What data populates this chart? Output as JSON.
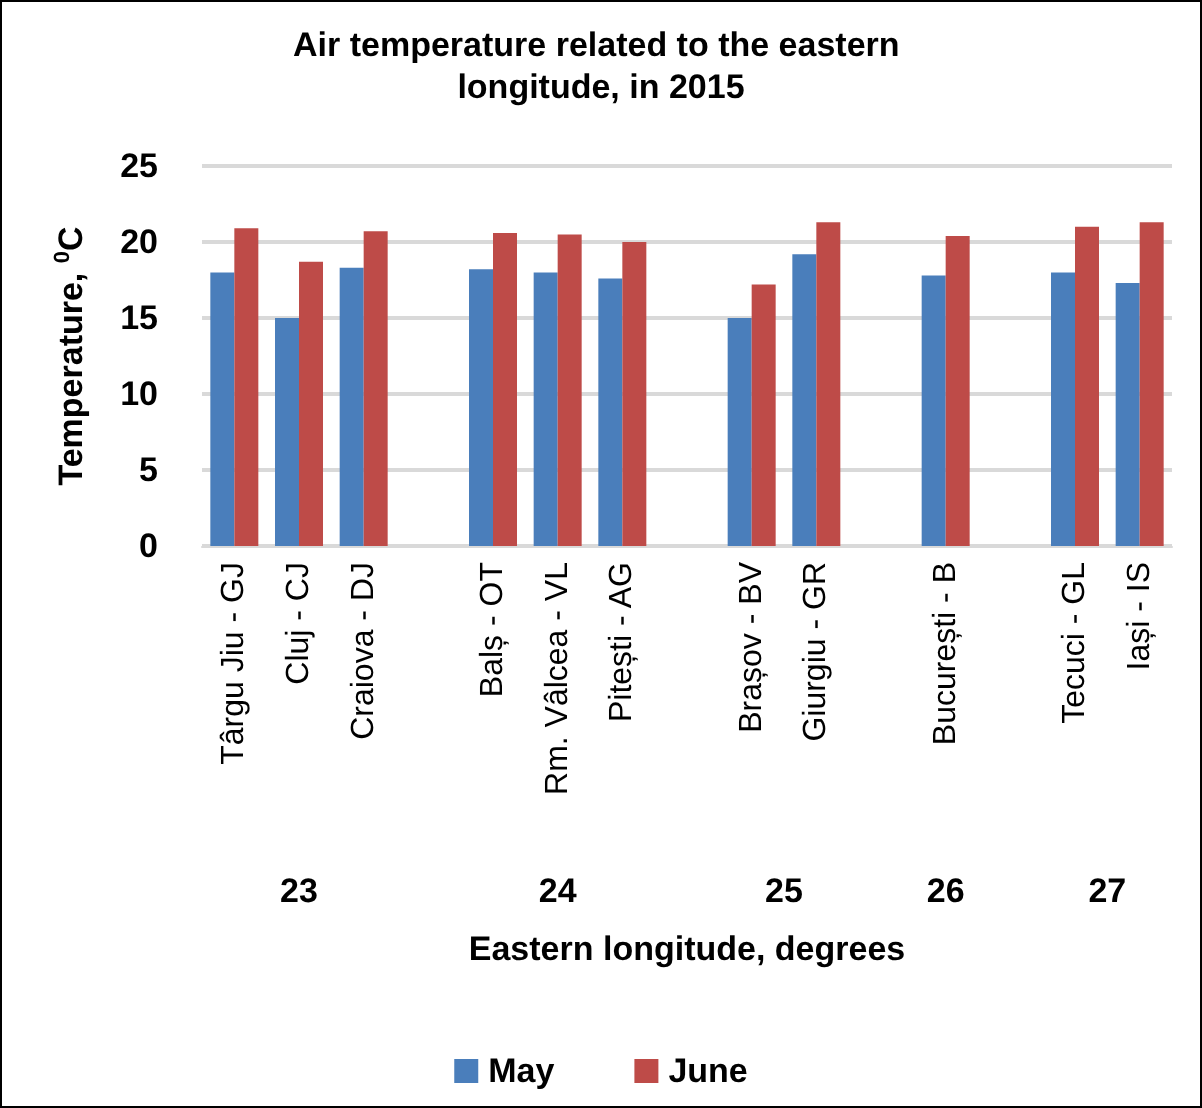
{
  "chart_data": {
    "type": "bar",
    "title": "Air temperature related to the eastern longitude, in 2015",
    "xlabel": "Eastern longitude, degrees",
    "ylabel": "Temperature, $^{0}$C",
    "categories": [
      "Târgu Jiu - GJ",
      "Cluj - CJ",
      "Craiova - DJ",
      null,
      "Balș - OT",
      "Rm. Vâlcea - VL",
      "Pitești - AG",
      null,
      "Brașov - BV",
      "Giurgiu - GR",
      null,
      "București - B",
      null,
      "Tecuci - GL",
      "Iași - IS"
    ],
    "series": [
      {
        "name": "May",
        "color": "#4a7ebb",
        "values": [
          18.0,
          15.0,
          18.3,
          null,
          18.2,
          18.0,
          17.6,
          null,
          15.0,
          19.2,
          null,
          17.8,
          null,
          18.0,
          17.3
        ]
      },
      {
        "name": "June",
        "color": "#be4b48",
        "values": [
          20.9,
          18.7,
          20.7,
          null,
          20.6,
          20.5,
          20.0,
          null,
          17.2,
          21.3,
          null,
          20.4,
          null,
          21.0,
          21.3
        ]
      }
    ],
    "annotations": [
      "23",
      "24",
      "25",
      "26",
      "27"
    ],
    "ylim": [
      0,
      25
    ],
    "yticks": [
      0,
      5,
      10,
      15,
      20,
      25
    ],
    "grid": "y",
    "legend": "bottom"
  }
}
